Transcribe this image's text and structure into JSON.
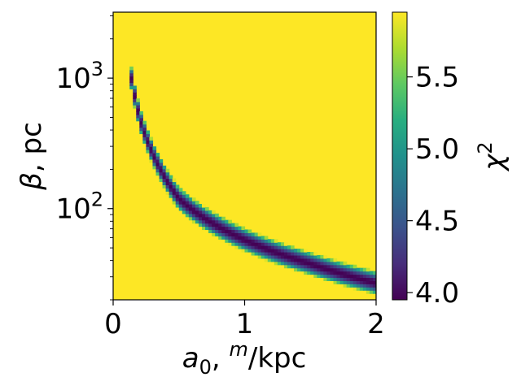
{
  "chart_data": {
    "type": "heatmap",
    "title": "",
    "xlabel": {
      "var": "a",
      "sub": "0",
      "sep": ", ",
      "sup": "m",
      "unit": "/kpc"
    },
    "ylabel": {
      "var": "β",
      "unit": ", pc"
    },
    "xlim": [
      0,
      2
    ],
    "ylim": [
      20,
      3200
    ],
    "yscale": "log",
    "xticks": [
      {
        "value": 0,
        "label": "0"
      },
      {
        "value": 1,
        "label": "1"
      },
      {
        "value": 2,
        "label": "2"
      }
    ],
    "yticks": [
      {
        "value": 100,
        "base": "10",
        "exp": "2"
      },
      {
        "value": 1000,
        "base": "10",
        "exp": "3"
      }
    ],
    "colorbar": {
      "label": {
        "var": "χ",
        "sup": "2"
      },
      "range": [
        3.95,
        5.95
      ],
      "ticks": [
        {
          "value": 4.0,
          "label": "4.0"
        },
        {
          "value": 4.5,
          "label": "4.5"
        },
        {
          "value": 5.0,
          "label": "5.0"
        },
        {
          "value": 5.5,
          "label": "5.5"
        }
      ],
      "colormap": "viridis"
    },
    "valley": {
      "description_points": [
        {
          "a0": 0.13,
          "beta": 1100
        },
        {
          "a0": 0.2,
          "beta": 500
        },
        {
          "a0": 0.5,
          "beta": 120
        },
        {
          "a0": 1.0,
          "beta": 58
        },
        {
          "a0": 1.5,
          "beta": 38
        },
        {
          "a0": 2.0,
          "beta": 27
        }
      ],
      "min_value": 3.95,
      "background_value": 5.95,
      "a0_min": 0.12
    },
    "colors": {
      "background": "#fde725",
      "minimum": "#440154"
    }
  }
}
